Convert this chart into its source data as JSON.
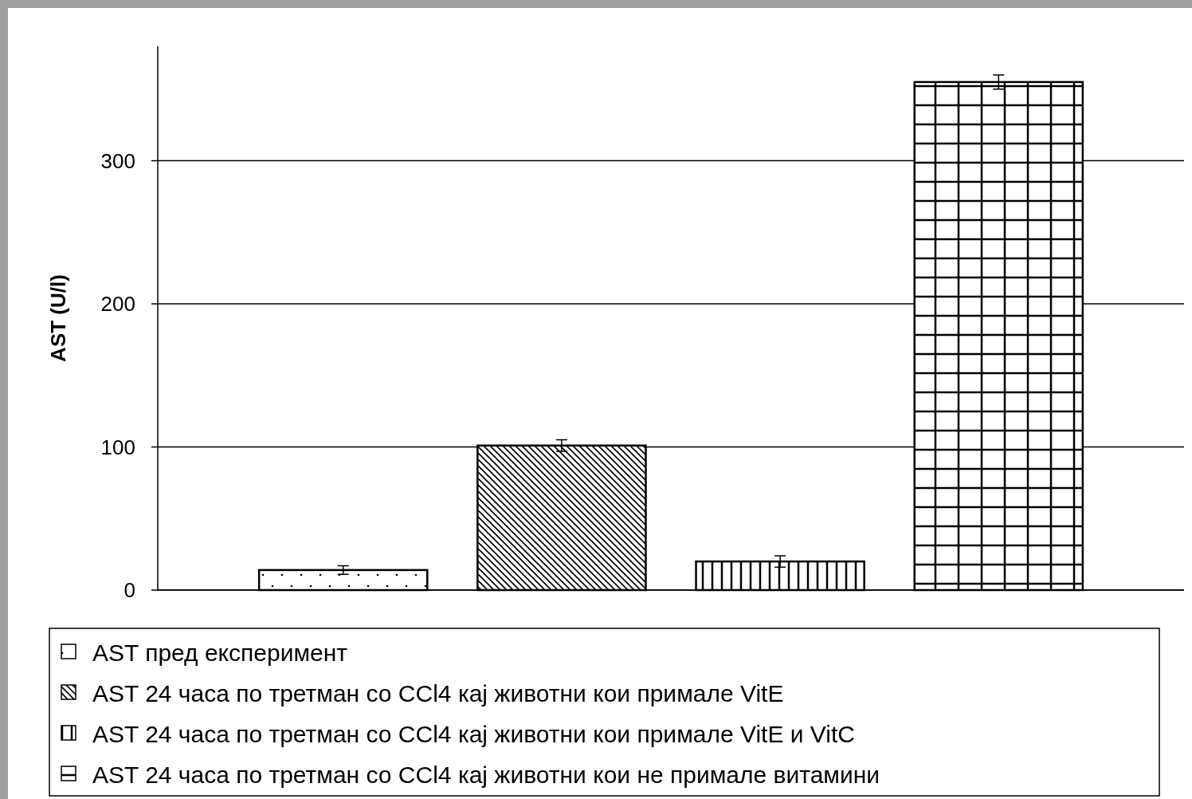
{
  "chart_data": {
    "type": "bar",
    "ylabel": "AST (U/l)",
    "categories": [
      null
    ],
    "series": [
      {
        "name": "AST пред експеримент",
        "color": "#000000",
        "values": [
          14
        ],
        "errors": [
          3
        ]
      },
      {
        "name": "AST 24 часа по третман со CCl4 кај животни кои примале VitE",
        "color": "#000000",
        "values": [
          101
        ],
        "errors": [
          4
        ]
      },
      {
        "name": "AST 24 часа по третман со CCl4 кај животни кои примале VitE и VitC",
        "color": "#000000",
        "values": [
          20
        ],
        "errors": [
          4
        ]
      },
      {
        "name": "AST 24 часа по третман со CCl4 кај животни кои не примале витамини",
        "color": "#000000",
        "values": [
          355
        ],
        "errors": [
          5
        ]
      }
    ],
    "ylim": [
      0,
      380
    ],
    "yticks": [
      0,
      100,
      200,
      300
    ],
    "grid": "y",
    "legend": "bottom"
  }
}
